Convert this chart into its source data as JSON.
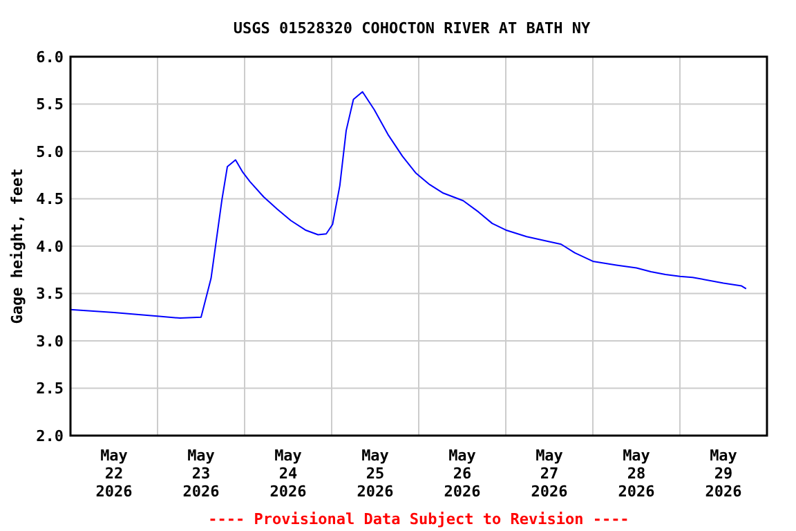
{
  "chart_data": {
    "type": "line",
    "title": "USGS 01528320 COHOCTON RIVER AT BATH NY",
    "ylabel": "Gage height, feet",
    "annotations": [
      "---- Provisional Data Subject to Revision ----"
    ],
    "x": [
      "2026-05-22T00:00",
      "2026-05-22T12:00",
      "2026-05-23T00:30",
      "2026-05-23T06:15",
      "2026-05-23T12:00",
      "2026-05-23T14:45",
      "2026-05-23T17:45",
      "2026-05-23T19:15",
      "2026-05-23T21:30",
      "2026-05-23T23:30",
      "2026-05-24T01:30",
      "2026-05-24T05:15",
      "2026-05-24T09:00",
      "2026-05-24T12:45",
      "2026-05-24T16:45",
      "2026-05-24T20:15",
      "2026-05-24T22:30",
      "2026-05-25T00:15",
      "2026-05-25T02:15",
      "2026-05-25T04:00",
      "2026-05-25T06:00",
      "2026-05-25T08:30",
      "2026-05-25T11:45",
      "2026-05-25T15:30",
      "2026-05-25T19:30",
      "2026-05-25T23:15",
      "2026-05-26T03:00",
      "2026-05-26T06:45",
      "2026-05-26T12:15",
      "2026-05-26T16:30",
      "2026-05-26T20:15",
      "2026-05-27T00:00",
      "2026-05-27T05:45",
      "2026-05-27T11:45",
      "2026-05-27T15:15",
      "2026-05-27T19:00",
      "2026-05-28T00:00",
      "2026-05-28T06:30",
      "2026-05-28T12:00",
      "2026-05-28T16:00",
      "2026-05-28T20:00",
      "2026-05-29T00:00",
      "2026-05-29T03:30",
      "2026-05-29T12:00",
      "2026-05-29T17:00",
      "2026-05-29T18:15"
    ],
    "series": [
      {
        "color": "#0000ff",
        "values": [
          3.33,
          3.3,
          3.26,
          3.24,
          3.25,
          3.66,
          4.49,
          4.84,
          4.91,
          4.78,
          4.68,
          4.52,
          4.39,
          4.27,
          4.17,
          4.12,
          4.13,
          4.23,
          4.64,
          5.22,
          5.55,
          5.63,
          5.44,
          5.18,
          4.95,
          4.77,
          4.65,
          4.56,
          4.48,
          4.36,
          4.24,
          4.17,
          4.1,
          4.05,
          4.02,
          3.93,
          3.84,
          3.8,
          3.77,
          3.73,
          3.7,
          3.68,
          3.67,
          3.61,
          3.58,
          3.55
        ]
      }
    ],
    "xlim": [
      "2026-05-22",
      "2026-05-30"
    ],
    "xticks": [
      {
        "value": "2026-05-22T12:00",
        "label": "May\n22\n2026"
      },
      {
        "value": "2026-05-23T12:00",
        "label": "May\n23\n2026"
      },
      {
        "value": "2026-05-24T12:00",
        "label": "May\n24\n2026"
      },
      {
        "value": "2026-05-25T12:00",
        "label": "May\n25\n2026"
      },
      {
        "value": "2026-05-26T12:00",
        "label": "May\n26\n2026"
      },
      {
        "value": "2026-05-27T12:00",
        "label": "May\n27\n2026"
      },
      {
        "value": "2026-05-28T12:00",
        "label": "May\n28\n2026"
      },
      {
        "value": "2026-05-29T12:00",
        "label": "May\n29\n2026"
      },
      {
        "value": "2026-05-23",
        "label": null
      },
      {
        "value": "2026-05-24",
        "label": null
      },
      {
        "value": "2026-05-25",
        "label": null
      },
      {
        "value": "2026-05-26",
        "label": null
      },
      {
        "value": "2026-05-27",
        "label": null
      },
      {
        "value": "2026-05-28",
        "label": null
      },
      {
        "value": "2026-05-29",
        "label": null
      }
    ],
    "ylim": [
      2,
      6
    ],
    "yticks": [
      {
        "value": 2,
        "label": "2.0"
      },
      {
        "value": 2.5,
        "label": "2.5"
      },
      {
        "value": 3,
        "label": "3.0"
      },
      {
        "value": 3.5,
        "label": "3.5"
      },
      {
        "value": 4,
        "label": "4.0"
      },
      {
        "value": 4.5,
        "label": "4.5"
      },
      {
        "value": 5,
        "label": "5.0"
      },
      {
        "value": 5.5,
        "label": "5.5"
      },
      {
        "value": 6,
        "label": "6.0"
      }
    ],
    "grid": true,
    "marker": "none",
    "line_style": "solid"
  }
}
